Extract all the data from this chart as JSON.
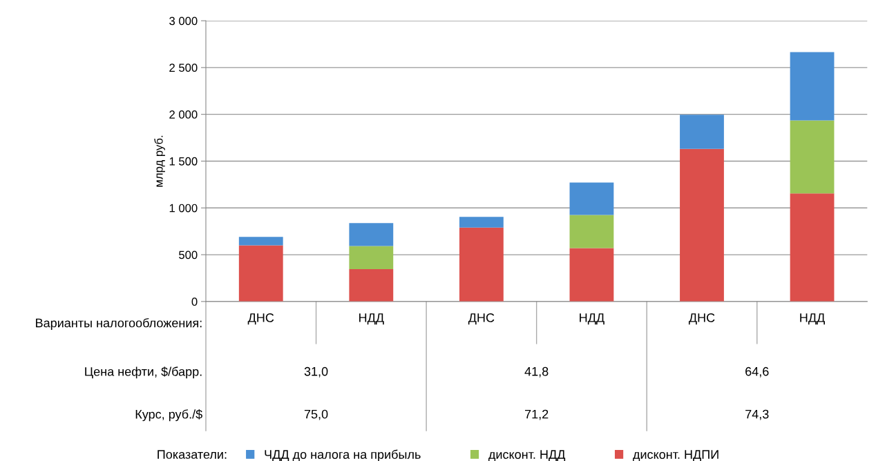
{
  "chart_data": {
    "type": "bar",
    "stacked": true,
    "categories": [
      "ДНС",
      "НДД",
      "ДНС",
      "НДД",
      "ДНС",
      "НДД"
    ],
    "series": [
      {
        "name": "дисконт. НДПИ",
        "color": "#dc4f4b",
        "values": [
          600,
          345,
          790,
          570,
          1630,
          1155
        ]
      },
      {
        "name": "дисконт. НДД",
        "color": "#9bc456",
        "values": [
          0,
          248,
          0,
          355,
          0,
          780
        ]
      },
      {
        "name": "ЧДД до налога на прибыль",
        "color": "#4a8fd4",
        "values": [
          90,
          245,
          115,
          347,
          365,
          730
        ]
      }
    ],
    "ylabel": "млрд руб.",
    "ylim": [
      0,
      3000
    ],
    "yticks": [
      0,
      500,
      {
        "value": 1000,
        "label": "1 000"
      },
      {
        "value": 1500,
        "label": "1 500"
      },
      {
        "value": 2000,
        "label": "2 000"
      },
      {
        "value": 2500,
        "label": "2 500"
      },
      {
        "value": 3000,
        "label": "3 000"
      }
    ],
    "grid": "y",
    "legend": "bottom",
    "legend_title": "Показатели:",
    "annotations": [
      "Варианты налогообложения:",
      "Цена нефти, $/барр.",
      "Курс, руб./$",
      "31,0",
      "41,8",
      "64,6",
      "75,0",
      "71,2",
      "74,3"
    ]
  }
}
